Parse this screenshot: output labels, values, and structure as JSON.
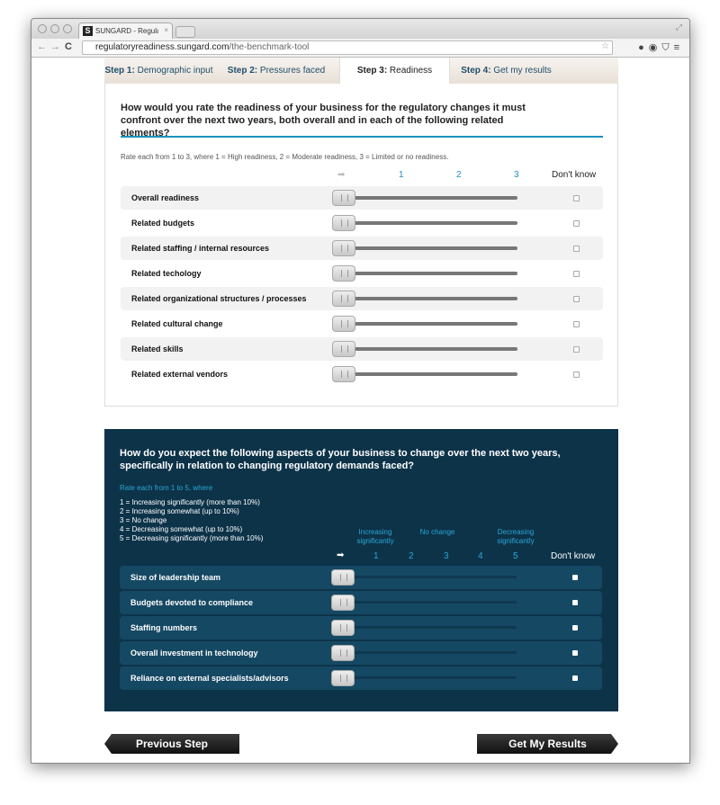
{
  "browser": {
    "tab_title": "SUNGARD - Regulatory str",
    "url_host": "regulatoryreadiness.sungard.com",
    "url_path": "/the-benchmark-tool"
  },
  "steps": [
    {
      "num": "Step 1:",
      "label": " Demographic input"
    },
    {
      "num": "Step 2:",
      "label": " Pressures faced"
    },
    {
      "num": "Step 3:",
      "label": " Readiness"
    },
    {
      "num": "Step 4:",
      "label": " Get my results"
    }
  ],
  "active_step": 3,
  "readiness": {
    "question": "How would you rate the readiness of your business for the regulatory changes it must confront over the next two years, both overall and in each of the following related elements?",
    "hint": "Rate each from 1 to 3, where 1 = High readiness, 2 = Moderate readiness, 3 = Limited or no readiness.",
    "scale": [
      "1",
      "2",
      "3"
    ],
    "dont_know": "Don't know",
    "items": [
      "Overall readiness",
      "Related budgets",
      "Related staffing / internal resources",
      "Related techology",
      "Related organizational structures / processes",
      "Related cultural change",
      "Related skills",
      "Related external vendors"
    ]
  },
  "change": {
    "question": "How do you expect the following aspects of your business to change over the next two years, specifically in relation to changing regulatory demands faced?",
    "hint": "Rate each from 1 to 5, where",
    "legend": [
      "1 = Increasing significantly (more than 10%)",
      "2 = Increasing somewhat (up to 10%)",
      "3 = No change",
      "4 = Decreasing somewhat (up to 10%)",
      "5 = Decreasing significantly (more than 10%)"
    ],
    "anchors": [
      "Increasing significantly",
      "No change",
      "Decreasing significantly"
    ],
    "scale": [
      "1",
      "2",
      "3",
      "4",
      "5"
    ],
    "dont_know": "Don't know",
    "items": [
      "Size of leadership team",
      "Budgets devoted to compliance",
      "Staffing numbers",
      "Overall investment in technology",
      "Reliance on external specialists/advisors"
    ]
  },
  "buttons": {
    "previous": "Previous Step",
    "results": "Get My Results"
  },
  "colors": {
    "accent": "#1992bf",
    "dark_panel": "#0d3349"
  }
}
